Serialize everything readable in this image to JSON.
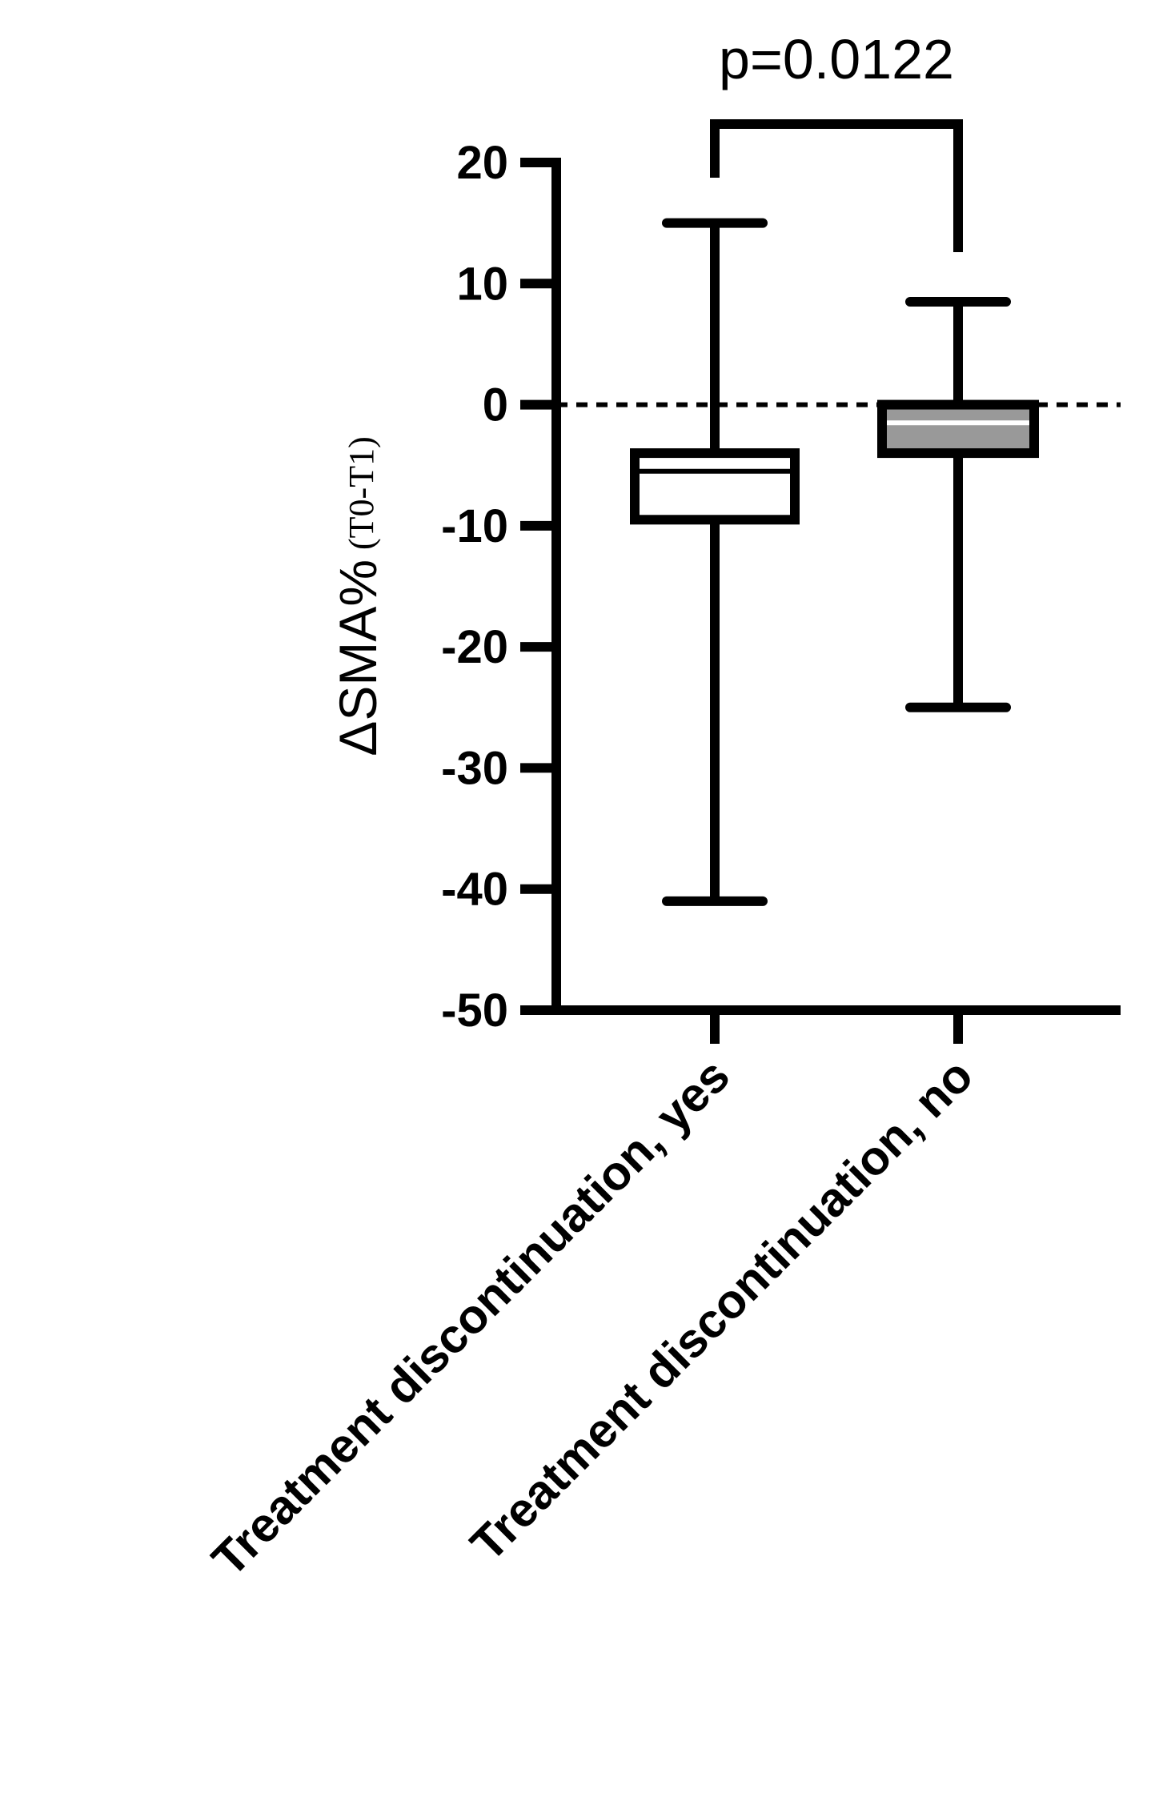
{
  "chart_data": {
    "type": "box",
    "title": "",
    "ylabel": "ΔSMA%",
    "ylabel_subscript": "(T0-T1)",
    "xlabel": "",
    "ylim": [
      -50,
      20
    ],
    "yticks": [
      20,
      10,
      0,
      -10,
      -20,
      -30,
      -40,
      -50
    ],
    "reference_line": {
      "y": 0,
      "style": "dashed"
    },
    "categories": [
      "Treatment discontinuation, yes",
      "Treatment discontinuation, no"
    ],
    "boxes": [
      {
        "name": "Treatment discontinuation, yes",
        "min": -41,
        "q1": -9.5,
        "median": -5.5,
        "q3": -4,
        "max": 15,
        "fill": "#ffffff"
      },
      {
        "name": "Treatment discontinuation, no",
        "min": -25,
        "q1": -4,
        "median": -1.5,
        "q3": 0,
        "max": 8.5,
        "fill": "#999999"
      }
    ],
    "comparison": {
      "from": 0,
      "to": 1,
      "label": "p=0.0122"
    },
    "grid": false
  }
}
